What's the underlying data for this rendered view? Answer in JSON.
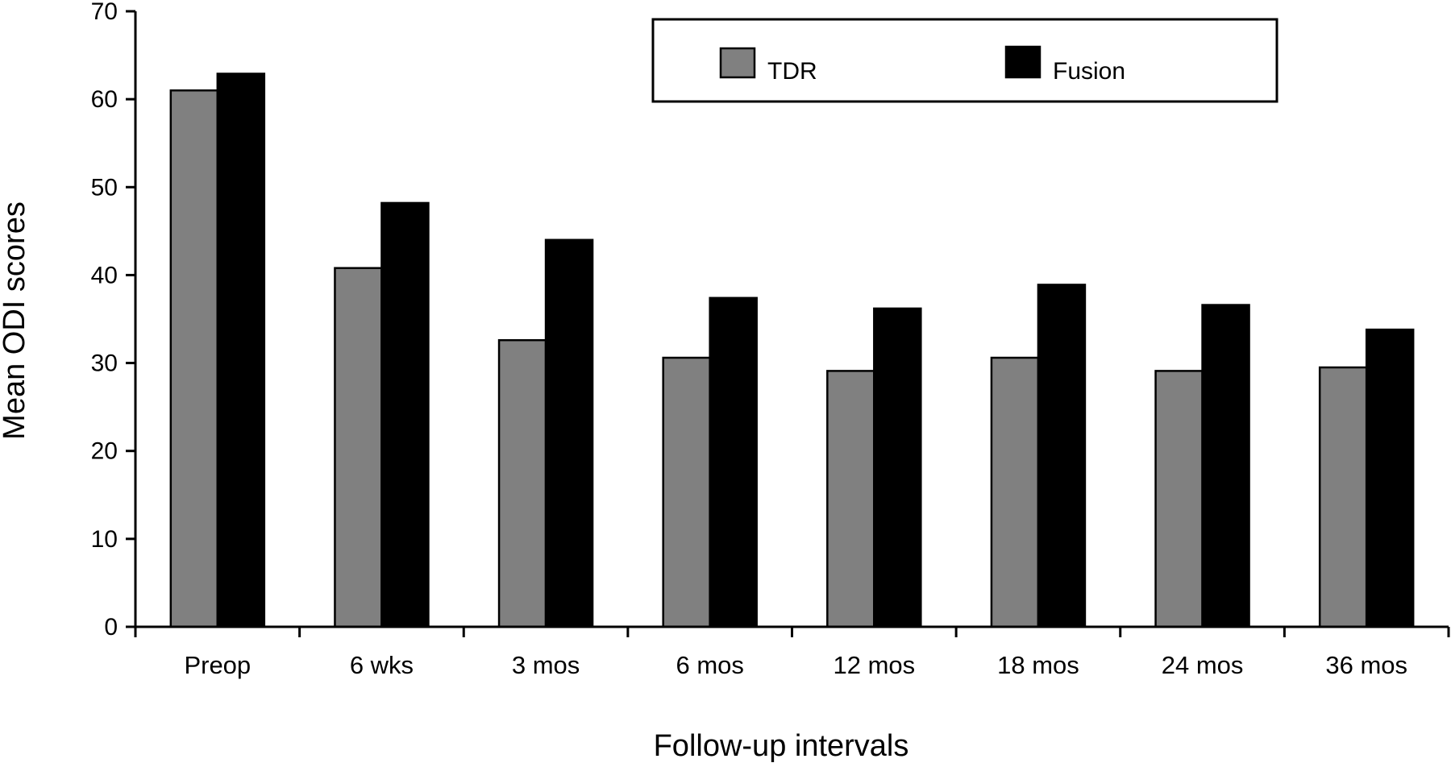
{
  "chart_data": {
    "type": "bar",
    "title": "",
    "xlabel": "Follow-up intervals",
    "ylabel": "Mean ODI scores",
    "ylim": [
      0,
      70
    ],
    "yticks": [
      0,
      10,
      20,
      30,
      40,
      50,
      60,
      70
    ],
    "categories": [
      "Preop",
      "6 wks",
      "3 mos",
      "6 mos",
      "12 mos",
      "18 mos",
      "24 mos",
      "36 mos"
    ],
    "series": [
      {
        "name": "TDR",
        "color": "#808080",
        "values": [
          61,
          40.8,
          32.6,
          30.6,
          29.1,
          30.6,
          29.1,
          29.5
        ]
      },
      {
        "name": "Fusion",
        "color": "#000000",
        "values": [
          62.9,
          48.2,
          44.0,
          37.4,
          36.2,
          38.9,
          36.6,
          33.8
        ]
      }
    ],
    "legend_position": "top-right",
    "grid": false
  }
}
